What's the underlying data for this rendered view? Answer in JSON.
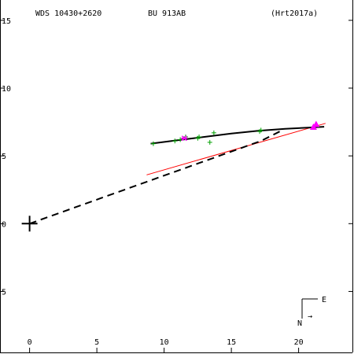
{
  "header": {
    "wds": "WDS 10430+2620",
    "pair": "BU  913AB",
    "reference": "(Hrt2017a)"
  },
  "compass": {
    "east": "E",
    "north": "N",
    "arrow": "→"
  },
  "colors": {
    "axis": "#000000",
    "orbit": "#000000",
    "linear_fit": "#ff0000",
    "observations": "#00a000",
    "highlight": "#ff00ff"
  },
  "chart_data": {
    "type": "scatter",
    "title": "",
    "xlabel": "",
    "ylabel": "",
    "xlim": [
      -2.2,
      24
    ],
    "ylim": [
      9.5,
      -16.5
    ],
    "x_ticks": [
      0,
      5,
      10,
      15,
      20
    ],
    "y_ticks": [
      -15,
      -10,
      -5,
      0,
      5
    ],
    "y_tick_labels": [
      "15",
      "10",
      "5",
      "0",
      "5"
    ],
    "primary": {
      "x": 0,
      "y": 0
    },
    "orbit_arc": {
      "x": [
        9.0,
        11.0,
        13.0,
        15.0,
        17.0,
        19.0,
        21.0,
        21.9
      ],
      "y": [
        -5.9,
        -6.15,
        -6.4,
        -6.65,
        -6.85,
        -7.0,
        -7.1,
        -7.15
      ]
    },
    "linear_fit": {
      "x": [
        8.7,
        22.0
      ],
      "y": [
        -3.6,
        -7.4
      ]
    },
    "dashed_line": {
      "x": [
        0,
        17.2,
        18.6
      ],
      "y": [
        0,
        -6.1,
        -6.8
      ]
    },
    "observations": [
      {
        "x": 9.2,
        "y": -5.9
      },
      {
        "x": 10.8,
        "y": -6.1
      },
      {
        "x": 11.2,
        "y": -6.2
      },
      {
        "x": 11.6,
        "y": -6.4
      },
      {
        "x": 12.5,
        "y": -6.3
      },
      {
        "x": 12.6,
        "y": -6.4
      },
      {
        "x": 13.4,
        "y": -6.0
      },
      {
        "x": 13.7,
        "y": -6.7
      },
      {
        "x": 17.1,
        "y": -6.8
      },
      {
        "x": 17.2,
        "y": -6.9
      }
    ],
    "highlight_point": {
      "x": 11.5,
      "y": -6.3
    },
    "recent_points": [
      {
        "x": 21.3,
        "y": -7.3
      },
      {
        "x": 21.1,
        "y": -7.1
      }
    ],
    "grid": false
  }
}
